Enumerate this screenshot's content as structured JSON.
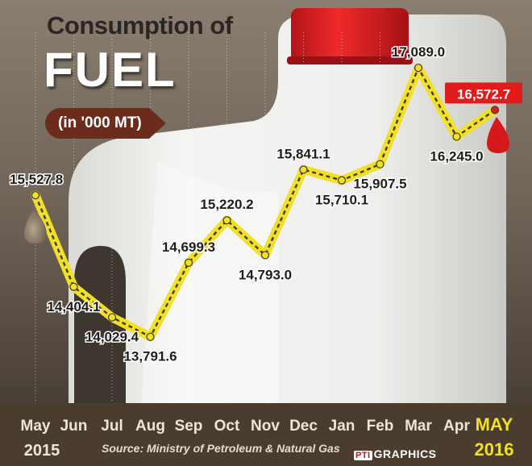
{
  "header": {
    "title_line1": "Consumption of",
    "title_line2": "FUEL",
    "unit": "(in '000 MT)"
  },
  "footer": {
    "year_start": "2015",
    "year_end": "2016",
    "source": "Source: Ministry of Petroleum & Natural Gas",
    "credit_logo": "PTI",
    "credit_text": "GRAPHICS"
  },
  "colors": {
    "line_highlight": "#f2e026",
    "line_dash": "#3d3a33",
    "marker_fill": "#f2e026",
    "last_marker_fill": "#e11b1b",
    "label_text": "#1f1d1a",
    "last_label_bg": "#e11b1b",
    "axis_band": "#4a3d2e",
    "axis_text": "#ece6d8",
    "axis_highlight": "#f2e026",
    "cap": "#dd1c1c"
  },
  "icons": [
    "oil-drop-icon",
    "red-drop-icon",
    "jerrycan-illustration"
  ],
  "chart_data": {
    "type": "line",
    "categories": [
      "May",
      "Jun",
      "Jul",
      "Aug",
      "Sep",
      "Oct",
      "Nov",
      "Dec",
      "Jan",
      "Feb",
      "Mar",
      "Apr",
      "MAY"
    ],
    "values": [
      15527.8,
      14404.1,
      14029.4,
      13791.6,
      14699.3,
      15220.2,
      14793.0,
      15841.1,
      15710.1,
      15907.5,
      17089.0,
      16245.0,
      16572.7
    ],
    "value_labels": [
      "15,527.8",
      "14,404.1",
      "14,029.4",
      "13,791.6",
      "14,699.3",
      "15,220.2",
      "14,793.0",
      "15,841.1",
      "15,710.1",
      "15,907.5",
      "17,089.0",
      "16,245.0",
      "16,572.7"
    ],
    "ylim": [
      13700,
      17150
    ],
    "grid": true
  }
}
